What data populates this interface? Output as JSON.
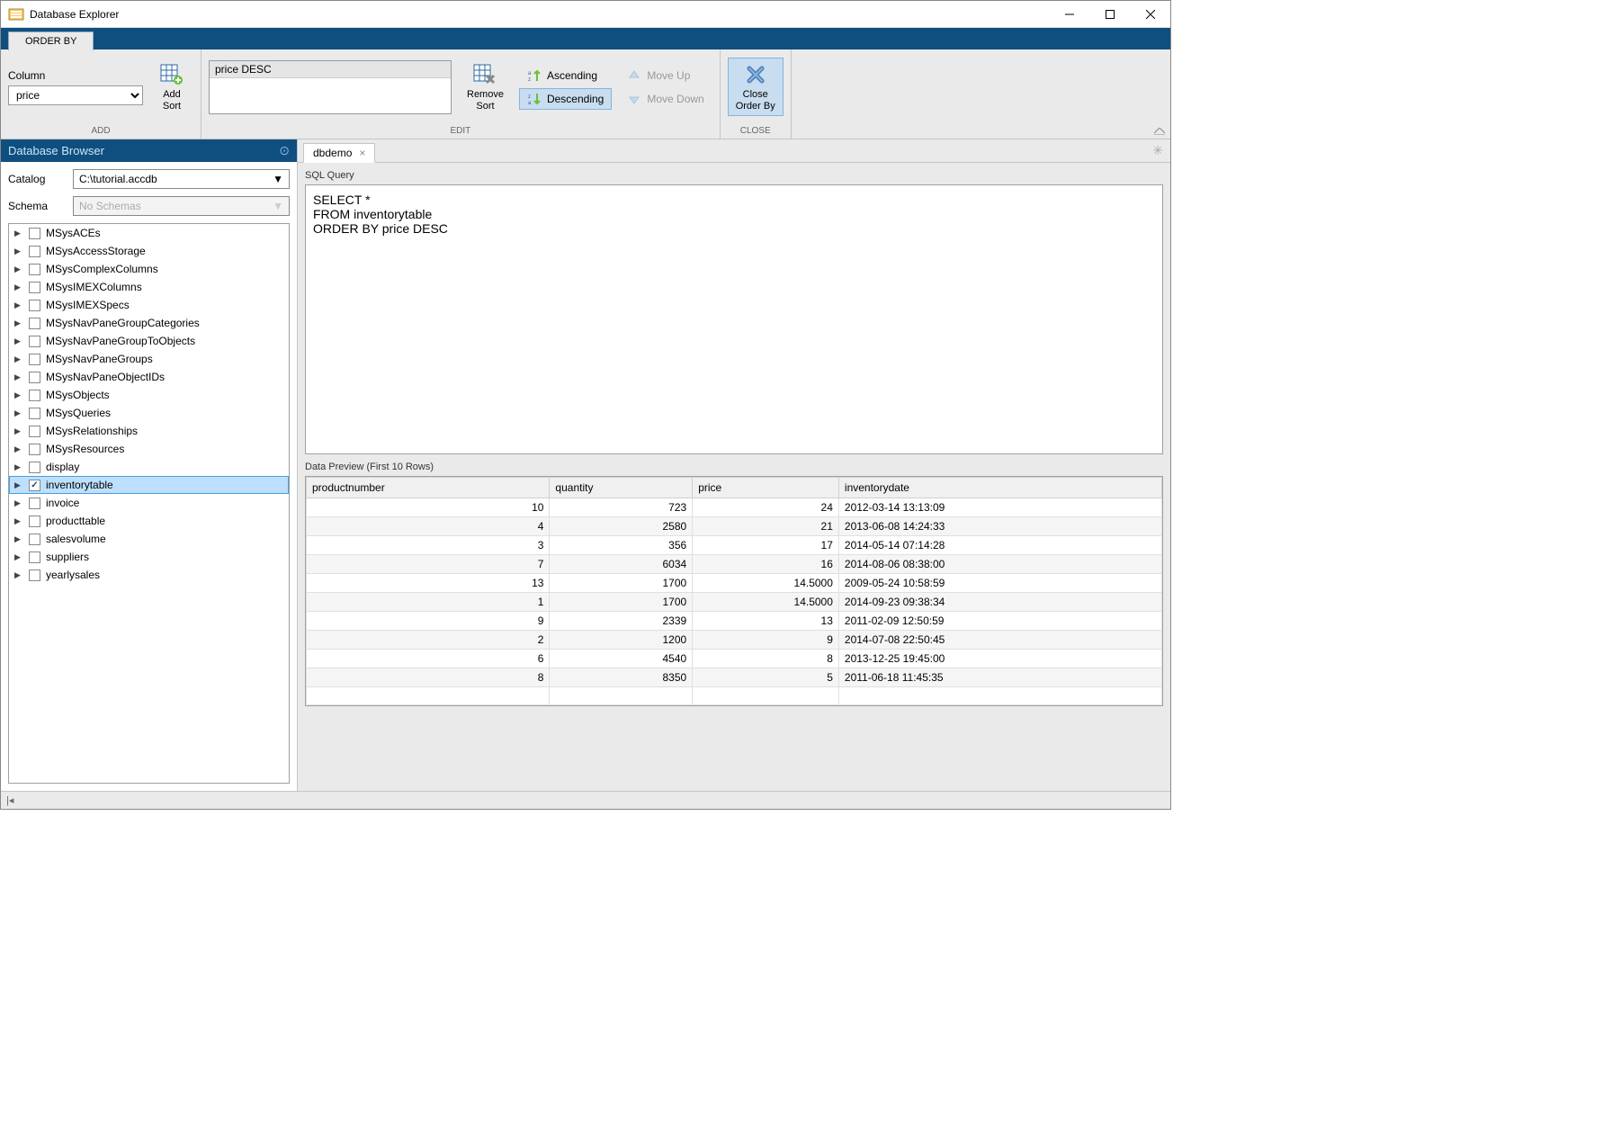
{
  "window": {
    "title": "Database Explorer"
  },
  "ribbon": {
    "tab": "ORDER BY",
    "column_label": "Column",
    "column_value": "price",
    "add_sort": "Add\nSort",
    "sort_list": [
      "price DESC"
    ],
    "remove_sort": "Remove\nSort",
    "ascending": "Ascending",
    "descending": "Descending",
    "move_up": "Move Up",
    "move_down": "Move Down",
    "close_orderby": "Close\nOrder By",
    "group_add": "ADD",
    "group_edit": "EDIT",
    "group_close": "CLOSE"
  },
  "sidebar": {
    "title": "Database Browser",
    "catalog_label": "Catalog",
    "catalog_value": "C:\\tutorial.accdb",
    "schema_label": "Schema",
    "schema_placeholder": "No Schemas",
    "tables": [
      {
        "name": "MSysACEs",
        "checked": false
      },
      {
        "name": "MSysAccessStorage",
        "checked": false
      },
      {
        "name": "MSysComplexColumns",
        "checked": false
      },
      {
        "name": "MSysIMEXColumns",
        "checked": false
      },
      {
        "name": "MSysIMEXSpecs",
        "checked": false
      },
      {
        "name": "MSysNavPaneGroupCategories",
        "checked": false
      },
      {
        "name": "MSysNavPaneGroupToObjects",
        "checked": false
      },
      {
        "name": "MSysNavPaneGroups",
        "checked": false
      },
      {
        "name": "MSysNavPaneObjectIDs",
        "checked": false
      },
      {
        "name": "MSysObjects",
        "checked": false
      },
      {
        "name": "MSysQueries",
        "checked": false
      },
      {
        "name": "MSysRelationships",
        "checked": false
      },
      {
        "name": "MSysResources",
        "checked": false
      },
      {
        "name": "display",
        "checked": false
      },
      {
        "name": "inventorytable",
        "checked": true,
        "selected": true
      },
      {
        "name": "invoice",
        "checked": false
      },
      {
        "name": "producttable",
        "checked": false
      },
      {
        "name": "salesvolume",
        "checked": false
      },
      {
        "name": "suppliers",
        "checked": false
      },
      {
        "name": "yearlysales",
        "checked": false
      }
    ]
  },
  "doc": {
    "tab_name": "dbdemo",
    "sql_label": "SQL Query",
    "sql_text": "SELECT *\nFROM inventorytable\nORDER BY price DESC",
    "preview_label": "Data Preview (First 10 Rows)",
    "columns": [
      "productnumber",
      "quantity",
      "price",
      "inventorydate"
    ],
    "col_types": [
      "num",
      "num",
      "num",
      "text"
    ],
    "rows": [
      [
        "10",
        "723",
        "24",
        "2012-03-14 13:13:09"
      ],
      [
        "4",
        "2580",
        "21",
        "2013-06-08 14:24:33"
      ],
      [
        "3",
        "356",
        "17",
        "2014-05-14 07:14:28"
      ],
      [
        "7",
        "6034",
        "16",
        "2014-08-06 08:38:00"
      ],
      [
        "13",
        "1700",
        "14.5000",
        "2009-05-24 10:58:59"
      ],
      [
        "1",
        "1700",
        "14.5000",
        "2014-09-23 09:38:34"
      ],
      [
        "9",
        "2339",
        "13",
        "2011-02-09 12:50:59"
      ],
      [
        "2",
        "1200",
        "9",
        "2014-07-08 22:50:45"
      ],
      [
        "6",
        "4540",
        "8",
        "2013-12-25 19:45:00"
      ],
      [
        "8",
        "8350",
        "5",
        "2011-06-18 11:45:35"
      ]
    ]
  },
  "colors": {
    "brand": "#0e4f80",
    "panel": "#eaeaea",
    "select": "#bde0ff"
  }
}
